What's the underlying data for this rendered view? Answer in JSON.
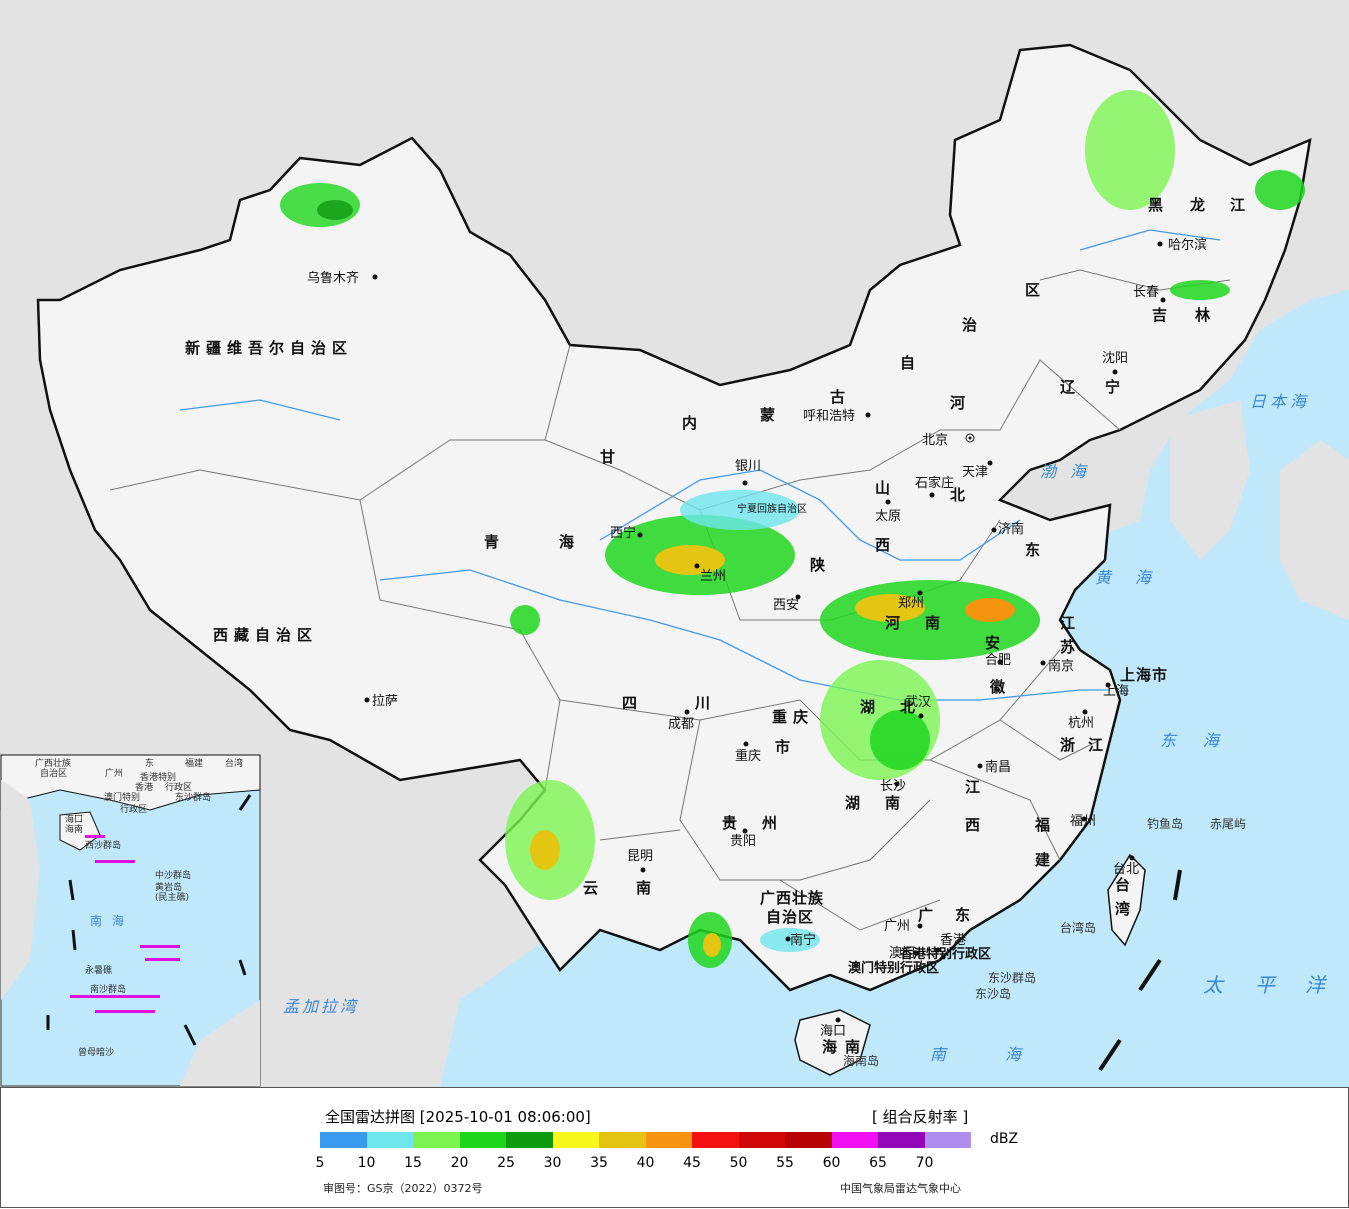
{
  "title": "全国雷达拼图 [2025-10-01 08:06:00]",
  "product": "[ 组合反射率 ]",
  "unit": "dBZ",
  "colors": {
    "sea": "#bfe8fb",
    "land_china": "#f4f4f4",
    "land_other": "#e3e3e3",
    "border": "#111111"
  },
  "scale": [
    {
      "value": "5",
      "color": "#3a9af0"
    },
    {
      "value": "10",
      "color": "#6ee6ec"
    },
    {
      "value": "15",
      "color": "#7cf552"
    },
    {
      "value": "20",
      "color": "#1ed61e"
    },
    {
      "value": "25",
      "color": "#109a10"
    },
    {
      "value": "30",
      "color": "#f7f71b"
    },
    {
      "value": "35",
      "color": "#e3c512"
    },
    {
      "value": "40",
      "color": "#f79410"
    },
    {
      "value": "45",
      "color": "#f21010"
    },
    {
      "value": "50",
      "color": "#d20808"
    },
    {
      "value": "55",
      "color": "#b60404"
    },
    {
      "value": "60",
      "color": "#f210f2"
    },
    {
      "value": "65",
      "color": "#9308b6"
    },
    {
      "value": "70",
      "color": "#b08ef0"
    }
  ],
  "footer_left": "审图号：GS京（2022）0372号",
  "footer_right": "中国气象局雷达气象中心",
  "regions": [
    "新疆维吾尔自治区",
    "西藏自治区",
    "青海",
    "甘",
    "内",
    "蒙",
    "古",
    "自",
    "治",
    "区",
    "黑",
    "龙",
    "江",
    "吉",
    "林",
    "辽",
    "宁",
    "河",
    "北",
    "山",
    "东",
    "西",
    "陕",
    "河",
    "南",
    "江",
    "苏",
    "安",
    "徽",
    "湖",
    "北",
    "湖",
    "南",
    "四",
    "川",
    "重庆",
    "市",
    "贵",
    "州",
    "云",
    "南",
    "广西壮族",
    "自治区",
    "广",
    "东",
    "江",
    "西",
    "浙",
    "江",
    "福",
    "建",
    "台",
    "湾",
    "海",
    "南",
    "上海市",
    "宁夏回族自治区",
    "香港特别行政区",
    "澳门特别行政区"
  ],
  "cities": [
    "乌鲁木齐",
    "拉萨",
    "西宁",
    "银川",
    "兰州",
    "呼和浩特",
    "北京",
    "天津",
    "石家庄",
    "太原",
    "济南",
    "郑州",
    "西安",
    "合肥",
    "南京",
    "上海",
    "杭州",
    "武汉",
    "成都",
    "重庆",
    "长沙",
    "南昌",
    "福州",
    "台北",
    "贵阳",
    "昆明",
    "南宁",
    "广州",
    "香港",
    "澳门",
    "海口",
    "哈尔滨",
    "长春",
    "沈阳"
  ],
  "seas": [
    "渤",
    "海",
    "黄",
    "海",
    "东",
    "海",
    "南",
    "海",
    "太",
    "平",
    "洋",
    "日本海",
    "孟加拉湾"
  ],
  "islands": [
    "钓鱼岛",
    "赤尾屿",
    "台湾岛",
    "东沙群岛",
    "东沙岛",
    "海南岛"
  ],
  "inset": {
    "labels": [
      "广西壮族",
      "自治区",
      "东",
      "福建",
      "台湾",
      "广州",
      "香港特别",
      "澳门特别",
      "行政区",
      "行政区",
      "香港",
      "东沙群岛",
      "海口",
      "海南",
      "西沙群岛",
      "中沙群岛",
      "黄岩岛",
      "(民主礁)",
      "南",
      "海",
      "永暑礁",
      "南沙群岛",
      "曾母暗沙"
    ]
  }
}
